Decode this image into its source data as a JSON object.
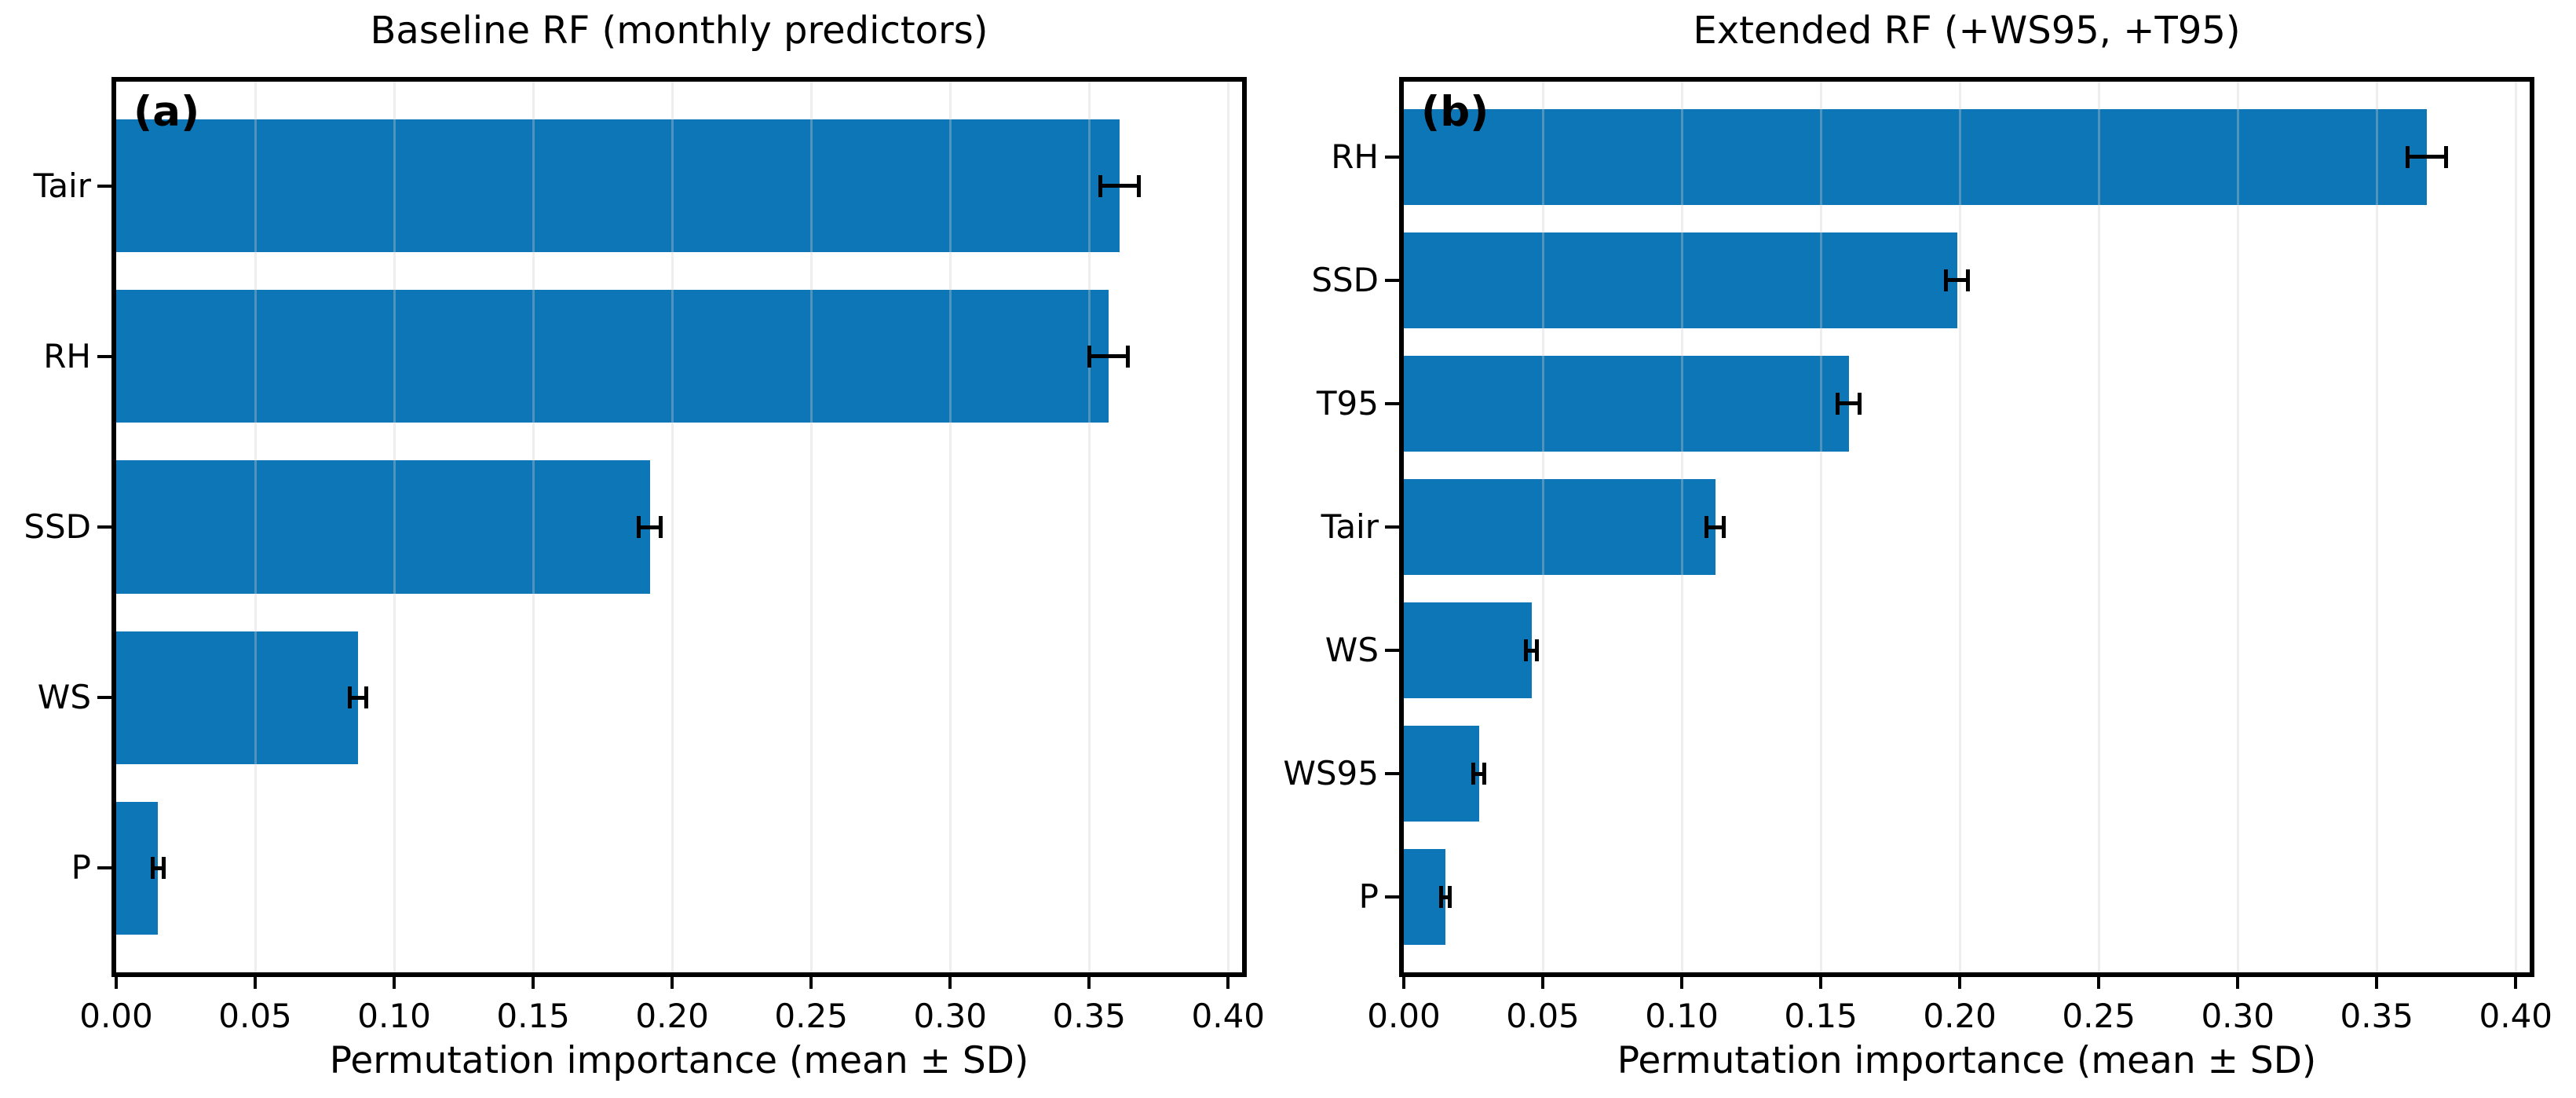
{
  "figure": {
    "background": "#ffffff",
    "text_color": "#000000",
    "bar_color": "#0d76b6",
    "error_bar_color": "#000000",
    "grid_color": "rgba(205,205,205,0.35)",
    "spine_color": "#000000"
  },
  "chart_data": [
    {
      "type": "bar",
      "orientation": "horizontal",
      "panel_label": "(a)",
      "title": "Baseline RF (monthly predictors)",
      "xlabel": "Permutation importance (mean ± SD)",
      "categories": [
        "Tair",
        "RH",
        "SSD",
        "WS",
        "P"
      ],
      "series": [
        {
          "name": "Permutation importance (mean)",
          "values": [
            0.361,
            0.357,
            0.192,
            0.087,
            0.015
          ],
          "errors_sd": [
            0.007,
            0.007,
            0.004,
            0.003,
            0.002
          ]
        }
      ],
      "xlim": [
        0,
        0.405
      ],
      "xticks": [
        "0.00",
        "0.05",
        "0.10",
        "0.15",
        "0.20",
        "0.25",
        "0.30",
        "0.35",
        "0.40"
      ],
      "grid": "vertical",
      "legend": null
    },
    {
      "type": "bar",
      "orientation": "horizontal",
      "panel_label": "(b)",
      "title": "Extended RF (+WS95, +T95)",
      "xlabel": "Permutation importance (mean ± SD)",
      "categories": [
        "RH",
        "SSD",
        "T95",
        "Tair",
        "WS",
        "WS95",
        "P"
      ],
      "series": [
        {
          "name": "Permutation importance (mean)",
          "values": [
            0.368,
            0.199,
            0.16,
            0.112,
            0.046,
            0.027,
            0.015
          ],
          "errors_sd": [
            0.007,
            0.004,
            0.004,
            0.003,
            0.002,
            0.002,
            0.0015
          ]
        }
      ],
      "xlim": [
        0,
        0.405
      ],
      "xticks": [
        "0.00",
        "0.05",
        "0.10",
        "0.15",
        "0.20",
        "0.25",
        "0.30",
        "0.35",
        "0.40"
      ],
      "grid": "vertical",
      "legend": null
    }
  ]
}
